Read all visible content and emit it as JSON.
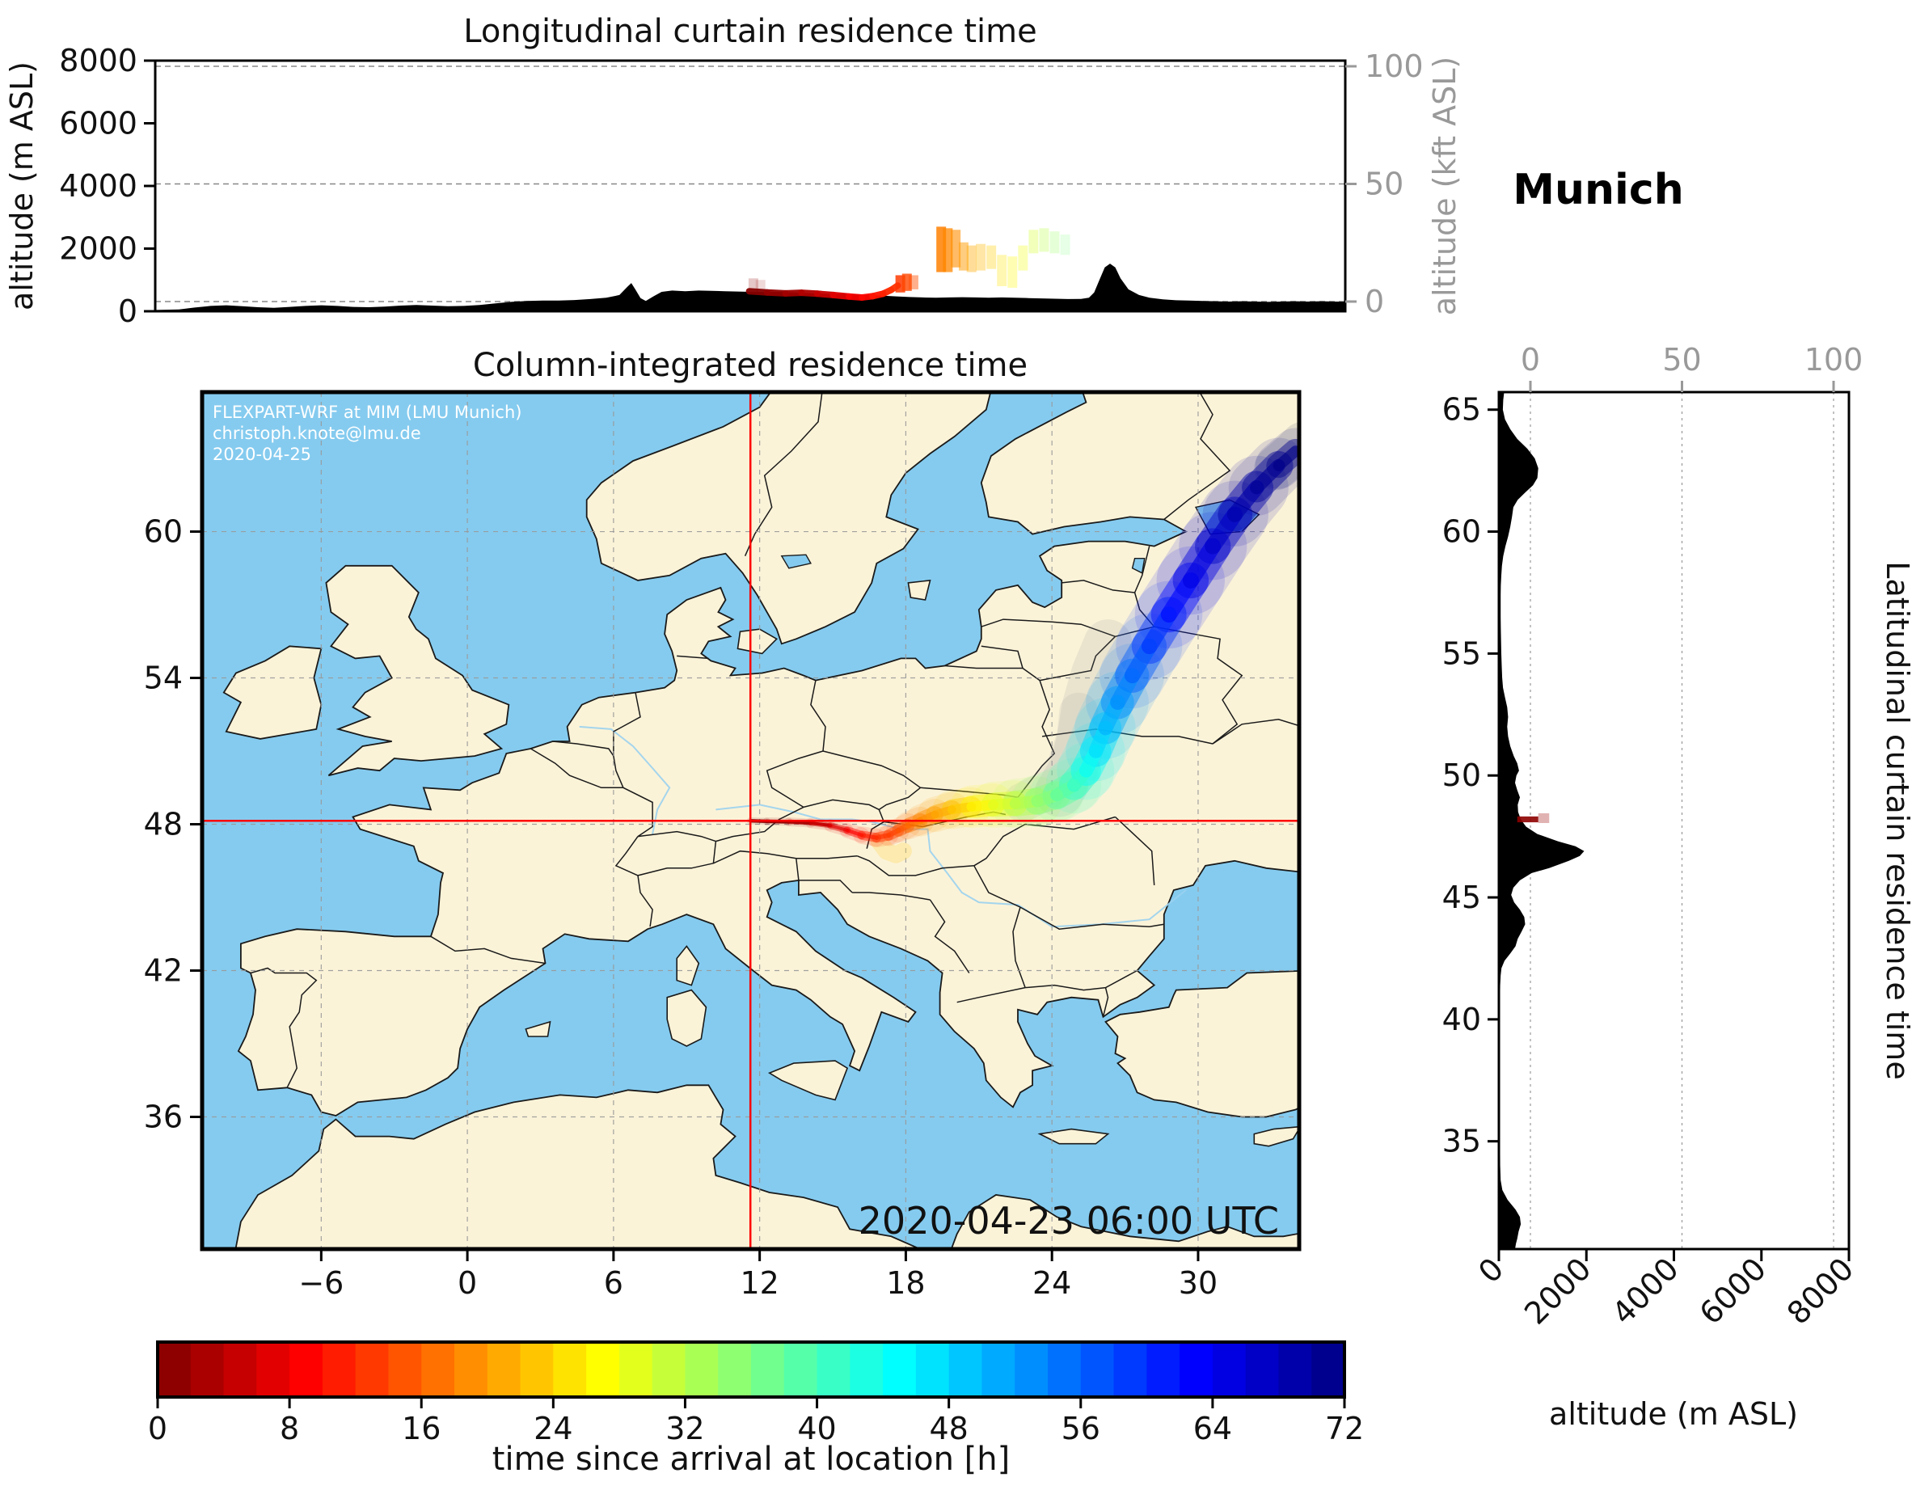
{
  "station": {
    "name": "Munich"
  },
  "timestamp": "2020-04-23 06:00 UTC",
  "watermark": {
    "line1": "FLEXPART-WRF at MIM (LMU Munich)",
    "line2": "christoph.knote@lmu.de",
    "line3": "2020-04-25"
  },
  "colors": {
    "ocean": "#85CBEF",
    "land": "#FBF3D8",
    "coast": "#1a1a1a",
    "grid": "#999999",
    "marker_red": "#ff0000",
    "terrain": "#000000",
    "secondary_axis": "#999999",
    "river": "#9ad1f0"
  },
  "chart_data": [
    {
      "id": "longitudinal_curtain",
      "type": "area",
      "title": "Longitudinal curtain residence time",
      "ylabel": "altitude (m ASL)",
      "ylabel_right": "altitude (kft ASL)",
      "xlim": [
        -10.9,
        34.22
      ],
      "ylim": [
        0,
        8000
      ],
      "yticks": [
        0,
        2000,
        4000,
        6000,
        8000
      ],
      "yticks_right": [
        0,
        50,
        100
      ],
      "grid": "horizontal dashed at secondary ticks",
      "terrain": [
        [
          -10.9,
          40
        ],
        [
          -10,
          60
        ],
        [
          -9.4,
          120
        ],
        [
          -8.8,
          170
        ],
        [
          -8.2,
          190
        ],
        [
          -7.6,
          160
        ],
        [
          -7,
          130
        ],
        [
          -6.4,
          110
        ],
        [
          -5.8,
          140
        ],
        [
          -5.2,
          170
        ],
        [
          -4.6,
          190
        ],
        [
          -4,
          170
        ],
        [
          -3.4,
          140
        ],
        [
          -2.8,
          130
        ],
        [
          -2.2,
          150
        ],
        [
          -1.6,
          180
        ],
        [
          -1,
          200
        ],
        [
          -0.4,
          180
        ],
        [
          0.2,
          160
        ],
        [
          0.8,
          170
        ],
        [
          1.4,
          200
        ],
        [
          2,
          250
        ],
        [
          2.6,
          300
        ],
        [
          3.2,
          330
        ],
        [
          3.8,
          340
        ],
        [
          4.4,
          340
        ],
        [
          5,
          360
        ],
        [
          5.6,
          390
        ],
        [
          6.2,
          430
        ],
        [
          6.7,
          520
        ],
        [
          7.0,
          780
        ],
        [
          7.15,
          900
        ],
        [
          7.3,
          700
        ],
        [
          7.5,
          420
        ],
        [
          7.7,
          330
        ],
        [
          8,
          480
        ],
        [
          8.3,
          620
        ],
        [
          8.7,
          660
        ],
        [
          9.2,
          640
        ],
        [
          9.7,
          660
        ],
        [
          10.2,
          650
        ],
        [
          10.7,
          640
        ],
        [
          11.2,
          630
        ],
        [
          11.7,
          620
        ],
        [
          12.2,
          615
        ],
        [
          12.7,
          620
        ],
        [
          13.2,
          605
        ],
        [
          13.7,
          585
        ],
        [
          14.2,
          565
        ],
        [
          14.7,
          550
        ],
        [
          15.2,
          560
        ],
        [
          15.7,
          540
        ],
        [
          16.2,
          515
        ],
        [
          16.7,
          495
        ],
        [
          17.2,
          475
        ],
        [
          17.7,
          455
        ],
        [
          18.2,
          440
        ],
        [
          18.7,
          430
        ],
        [
          19.2,
          440
        ],
        [
          19.7,
          450
        ],
        [
          20.2,
          440
        ],
        [
          20.7,
          430
        ],
        [
          21.2,
          440
        ],
        [
          21.7,
          430
        ],
        [
          22.2,
          420
        ],
        [
          22.7,
          410
        ],
        [
          23.2,
          400
        ],
        [
          23.7,
          390
        ],
        [
          24.2,
          395
        ],
        [
          24.5,
          430
        ],
        [
          24.7,
          600
        ],
        [
          24.9,
          1000
        ],
        [
          25.1,
          1400
        ],
        [
          25.3,
          1520
        ],
        [
          25.5,
          1400
        ],
        [
          25.7,
          1050
        ],
        [
          26,
          700
        ],
        [
          26.4,
          520
        ],
        [
          26.8,
          430
        ],
        [
          27.3,
          380
        ],
        [
          27.8,
          350
        ],
        [
          28.3,
          340
        ],
        [
          28.8,
          330
        ],
        [
          29.3,
          320
        ],
        [
          29.8,
          310
        ],
        [
          30.3,
          320
        ],
        [
          30.8,
          310
        ],
        [
          31.3,
          300
        ],
        [
          31.8,
          310
        ],
        [
          32.3,
          320
        ],
        [
          32.8,
          310
        ],
        [
          33.3,
          320
        ],
        [
          33.8,
          310
        ],
        [
          34.22,
          305
        ]
      ],
      "trajectory_line": [
        [
          11.62,
          640,
          0
        ],
        [
          12.3,
          600,
          1
        ],
        [
          13.0,
          570,
          2
        ],
        [
          13.6,
          590,
          3
        ],
        [
          14.2,
          560,
          4
        ],
        [
          14.8,
          520,
          6
        ],
        [
          15.4,
          470,
          8
        ],
        [
          15.9,
          440,
          9
        ],
        [
          16.3,
          480,
          10
        ],
        [
          16.7,
          560,
          11
        ],
        [
          17.0,
          680,
          12
        ],
        [
          17.25,
          820,
          13
        ]
      ],
      "trajectory_columns": [
        [
          11.78,
          620,
          1050,
          1,
          0.22
        ],
        [
          12.05,
          620,
          1000,
          1.5,
          0.15
        ],
        [
          17.35,
          600,
          1150,
          13,
          0.85
        ],
        [
          17.6,
          650,
          1200,
          14,
          0.8
        ],
        [
          17.85,
          700,
          1150,
          14.5,
          0.45
        ],
        [
          18.9,
          1250,
          2700,
          18,
          0.85
        ],
        [
          19.15,
          1250,
          2650,
          18.5,
          0.75
        ],
        [
          19.45,
          1400,
          2600,
          19,
          0.6
        ],
        [
          19.75,
          1300,
          2200,
          20,
          0.5
        ],
        [
          20.05,
          1250,
          2100,
          21,
          0.4
        ],
        [
          20.4,
          1300,
          2150,
          22,
          0.35
        ],
        [
          20.8,
          1350,
          2100,
          23.5,
          0.33
        ],
        [
          21.2,
          800,
          1800,
          25,
          0.3
        ],
        [
          21.6,
          750,
          1750,
          26.5,
          0.3
        ],
        [
          22.0,
          1300,
          2100,
          28,
          0.3
        ],
        [
          22.4,
          1850,
          2600,
          30,
          0.32
        ],
        [
          22.8,
          1900,
          2650,
          32,
          0.3
        ],
        [
          23.2,
          1850,
          2550,
          34,
          0.26
        ],
        [
          23.6,
          1800,
          2450,
          36,
          0.2
        ]
      ]
    },
    {
      "id": "map",
      "type": "map",
      "title": "Column-integrated residence time",
      "xlim": [
        -10.89,
        34.15
      ],
      "ylim": [
        30.58,
        65.72
      ],
      "xticks": [
        -6,
        0,
        6,
        12,
        18,
        24,
        30
      ],
      "yticks": [
        36,
        42,
        48,
        54,
        60
      ],
      "grid": "dashed both axes",
      "marker": {
        "lon": 11.62,
        "lat": 48.14
      },
      "trajectory": [
        [
          11.62,
          48.14,
          0,
          0.07
        ],
        [
          12.3,
          48.12,
          1,
          0.08
        ],
        [
          13.2,
          48.1,
          2,
          0.09
        ],
        [
          14.1,
          48.05,
          4,
          0.1
        ],
        [
          14.9,
          47.95,
          6,
          0.12
        ],
        [
          15.6,
          47.75,
          8,
          0.15
        ],
        [
          16.2,
          47.55,
          10,
          0.18
        ],
        [
          16.8,
          47.45,
          12,
          0.2
        ],
        [
          17.3,
          47.55,
          13,
          0.22
        ],
        [
          17.7,
          47.75,
          14,
          0.25
        ],
        [
          18.1,
          47.95,
          16,
          0.28
        ],
        [
          18.6,
          48.15,
          18,
          0.32
        ],
        [
          19.2,
          48.4,
          20,
          0.36
        ],
        [
          19.9,
          48.6,
          22,
          0.4
        ],
        [
          20.7,
          48.72,
          25,
          0.44
        ],
        [
          21.6,
          48.8,
          28,
          0.48
        ],
        [
          22.5,
          48.85,
          31,
          0.52
        ],
        [
          23.4,
          48.95,
          34,
          0.55
        ],
        [
          24.2,
          49.2,
          37,
          0.58
        ],
        [
          24.9,
          49.6,
          40,
          0.6
        ],
        [
          25.4,
          50.2,
          43,
          0.62
        ],
        [
          25.8,
          51.0,
          46,
          0.64
        ],
        [
          26.2,
          51.95,
          49,
          0.66
        ],
        [
          26.7,
          53.0,
          52,
          0.68
        ],
        [
          27.3,
          54.1,
          55,
          0.7
        ],
        [
          28.0,
          55.3,
          58,
          0.72
        ],
        [
          28.8,
          56.6,
          61,
          0.73
        ],
        [
          29.7,
          58.0,
          64,
          0.74
        ],
        [
          30.6,
          59.4,
          66,
          0.74
        ],
        [
          31.5,
          60.7,
          68,
          0.72
        ],
        [
          32.4,
          61.8,
          70,
          0.66
        ],
        [
          33.3,
          62.7,
          71,
          0.55
        ],
        [
          34.0,
          63.3,
          72,
          0.45
        ]
      ],
      "ghost_streaks": [
        {
          "pts": [
            [
              24.3,
              49.3
            ],
            [
              24.9,
              50.3
            ],
            [
              25.2,
              51.5
            ],
            [
              25.4,
              52.8
            ],
            [
              25.8,
              54.2
            ],
            [
              26.3,
              55.4
            ]
          ],
          "width_deg": 1.0,
          "color": "#8a8f98",
          "opacity": 0.14
        },
        {
          "pts": [
            [
              22.8,
              48.9
            ],
            [
              23.8,
              49.4
            ],
            [
              24.6,
              50.4
            ],
            [
              25.0,
              51.6
            ],
            [
              25.1,
              52.6
            ]
          ],
          "width_deg": 0.8,
          "color": "#8a8f98",
          "opacity": 0.12
        },
        {
          "pts": [
            [
              16.9,
              47.3
            ],
            [
              17.2,
              46.9
            ],
            [
              17.6,
              46.75
            ],
            [
              17.9,
              46.9
            ]
          ],
          "width_deg": 0.35,
          "color": "#ffd84d",
          "opacity": 0.3
        },
        {
          "pts": [
            [
              33.2,
              62.6
            ],
            [
              33.9,
              63.2
            ],
            [
              34.3,
              63.6
            ]
          ],
          "width_deg": 0.9,
          "color": "#8a8f98",
          "opacity": 0.25
        }
      ]
    },
    {
      "id": "latitudinal_curtain",
      "type": "area",
      "label": "Latitudinal curtain residence time",
      "xlabel": "altitude (m ASL)",
      "xlim": [
        0,
        8000
      ],
      "ylim": [
        30.58,
        65.72
      ],
      "xticks": [
        0,
        2000,
        4000,
        6000,
        8000
      ],
      "xticks_top": [
        0,
        50,
        100
      ],
      "yticks": [
        35,
        40,
        45,
        50,
        55,
        60,
        65
      ],
      "grid": "vertical dotted at secondary ticks",
      "terrain": [
        [
          65.72,
          120
        ],
        [
          65.4,
          100
        ],
        [
          65,
          90
        ],
        [
          64.6,
          140
        ],
        [
          64.2,
          260
        ],
        [
          63.8,
          420
        ],
        [
          63.4,
          650
        ],
        [
          63,
          820
        ],
        [
          62.6,
          900
        ],
        [
          62.2,
          880
        ],
        [
          61.9,
          780
        ],
        [
          61.6,
          600
        ],
        [
          61.3,
          430
        ],
        [
          61,
          330
        ],
        [
          60.6,
          300
        ],
        [
          60.2,
          260
        ],
        [
          59.8,
          210
        ],
        [
          59.4,
          150
        ],
        [
          59,
          100
        ],
        [
          58.6,
          70
        ],
        [
          58.2,
          55
        ],
        [
          57.8,
          45
        ],
        [
          57.4,
          40
        ],
        [
          57,
          40
        ],
        [
          56.5,
          40
        ],
        [
          56,
          45
        ],
        [
          55.5,
          50
        ],
        [
          55,
          55
        ],
        [
          54.5,
          65
        ],
        [
          54,
          75
        ],
        [
          53.6,
          95
        ],
        [
          53.2,
          140
        ],
        [
          52.8,
          190
        ],
        [
          52.4,
          210
        ],
        [
          52,
          190
        ],
        [
          51.6,
          210
        ],
        [
          51.2,
          260
        ],
        [
          50.8,
          340
        ],
        [
          50.5,
          420
        ],
        [
          50.2,
          460
        ],
        [
          50,
          400
        ],
        [
          49.7,
          370
        ],
        [
          49.4,
          420
        ],
        [
          49.1,
          480
        ],
        [
          48.8,
          430
        ],
        [
          48.5,
          440
        ],
        [
          48.2,
          500
        ],
        [
          47.9,
          620
        ],
        [
          47.6,
          880
        ],
        [
          47.3,
          1350
        ],
        [
          47.1,
          1750
        ],
        [
          46.9,
          1950
        ],
        [
          46.7,
          1850
        ],
        [
          46.5,
          1600
        ],
        [
          46.2,
          1150
        ],
        [
          46,
          750
        ],
        [
          45.7,
          480
        ],
        [
          45.4,
          330
        ],
        [
          45.1,
          280
        ],
        [
          44.8,
          350
        ],
        [
          44.5,
          480
        ],
        [
          44.2,
          580
        ],
        [
          43.9,
          600
        ],
        [
          43.6,
          520
        ],
        [
          43.3,
          430
        ],
        [
          43,
          380
        ],
        [
          42.7,
          260
        ],
        [
          42.4,
          130
        ],
        [
          42.1,
          60
        ],
        [
          41.8,
          40
        ],
        [
          41.4,
          30
        ],
        [
          41,
          25
        ],
        [
          40,
          20
        ],
        [
          39,
          20
        ],
        [
          38,
          20
        ],
        [
          37,
          20
        ],
        [
          36,
          20
        ],
        [
          35,
          25
        ],
        [
          34,
          30
        ],
        [
          33.4,
          40
        ],
        [
          33,
          80
        ],
        [
          32.6,
          200
        ],
        [
          32.2,
          380
        ],
        [
          31.9,
          480
        ],
        [
          31.6,
          500
        ],
        [
          31.3,
          450
        ],
        [
          31,
          420
        ],
        [
          30.8,
          390
        ],
        [
          30.58,
          370
        ]
      ],
      "trajectory_marks": [
        [
          48.08,
          48.32,
          420,
          900,
          1,
          0.9
        ],
        [
          48.05,
          48.45,
          900,
          1150,
          2,
          0.3
        ]
      ]
    },
    {
      "id": "colorbar",
      "type": "colorbar",
      "label": "time since arrival at location [h]",
      "ticks": [
        0,
        8,
        16,
        24,
        32,
        40,
        48,
        56,
        64,
        72
      ],
      "range": [
        0,
        72
      ],
      "colormap": "jet reversed (dark red at 0 h to dark navy at 72 h)",
      "steps": 36
    }
  ]
}
